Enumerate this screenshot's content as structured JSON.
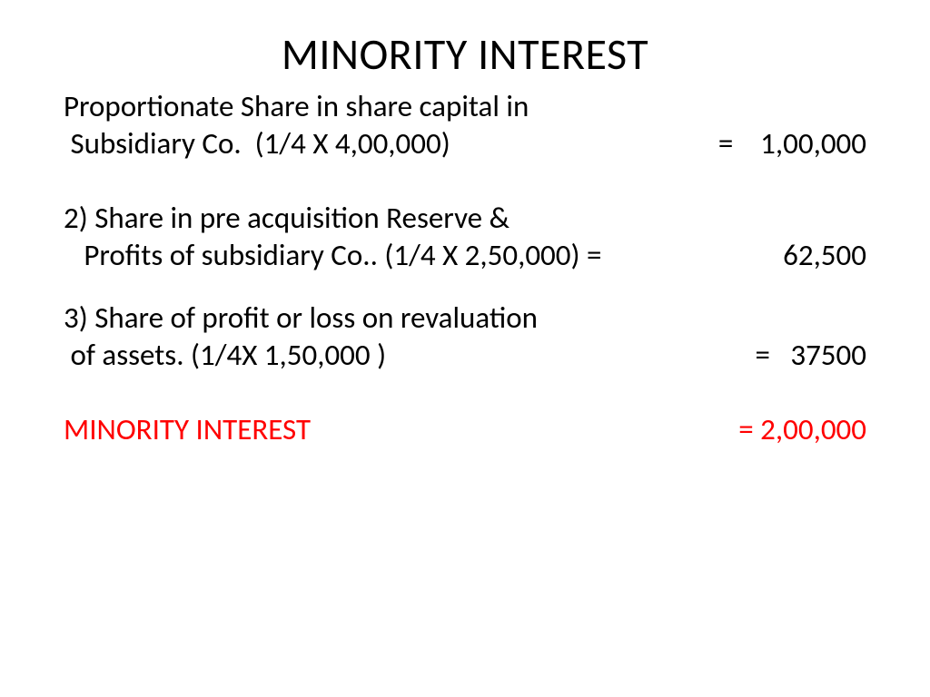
{
  "colors": {
    "text": "#000000",
    "highlight": "#ff0000",
    "background": "#ffffff"
  },
  "typography": {
    "title_fontsize": 48,
    "body_fontsize": 33,
    "font_family": "Calibri"
  },
  "title": "MINORITY INTEREST",
  "items": [
    {
      "line1": "Proportionate Share in share capital in",
      "line2": " Subsidiary Co.  (1/4 X 4,00,000)",
      "eq": "=",
      "value": "1,00,000"
    },
    {
      "line1": "2) Share in pre acquisition Reserve &",
      "line2": "   Profits of subsidiary Co.. (1/4 X 2,50,000) =",
      "eq": "",
      "value": "62,500"
    },
    {
      "line1": "3) Share of profit or loss on revaluation",
      "line2": " of assets. (1/4X 1,50,000 )",
      "eq": "=",
      "value": "37500"
    }
  ],
  "total": {
    "label": "MINORITY INTEREST",
    "eq": "=",
    "value": "2,00,000"
  }
}
